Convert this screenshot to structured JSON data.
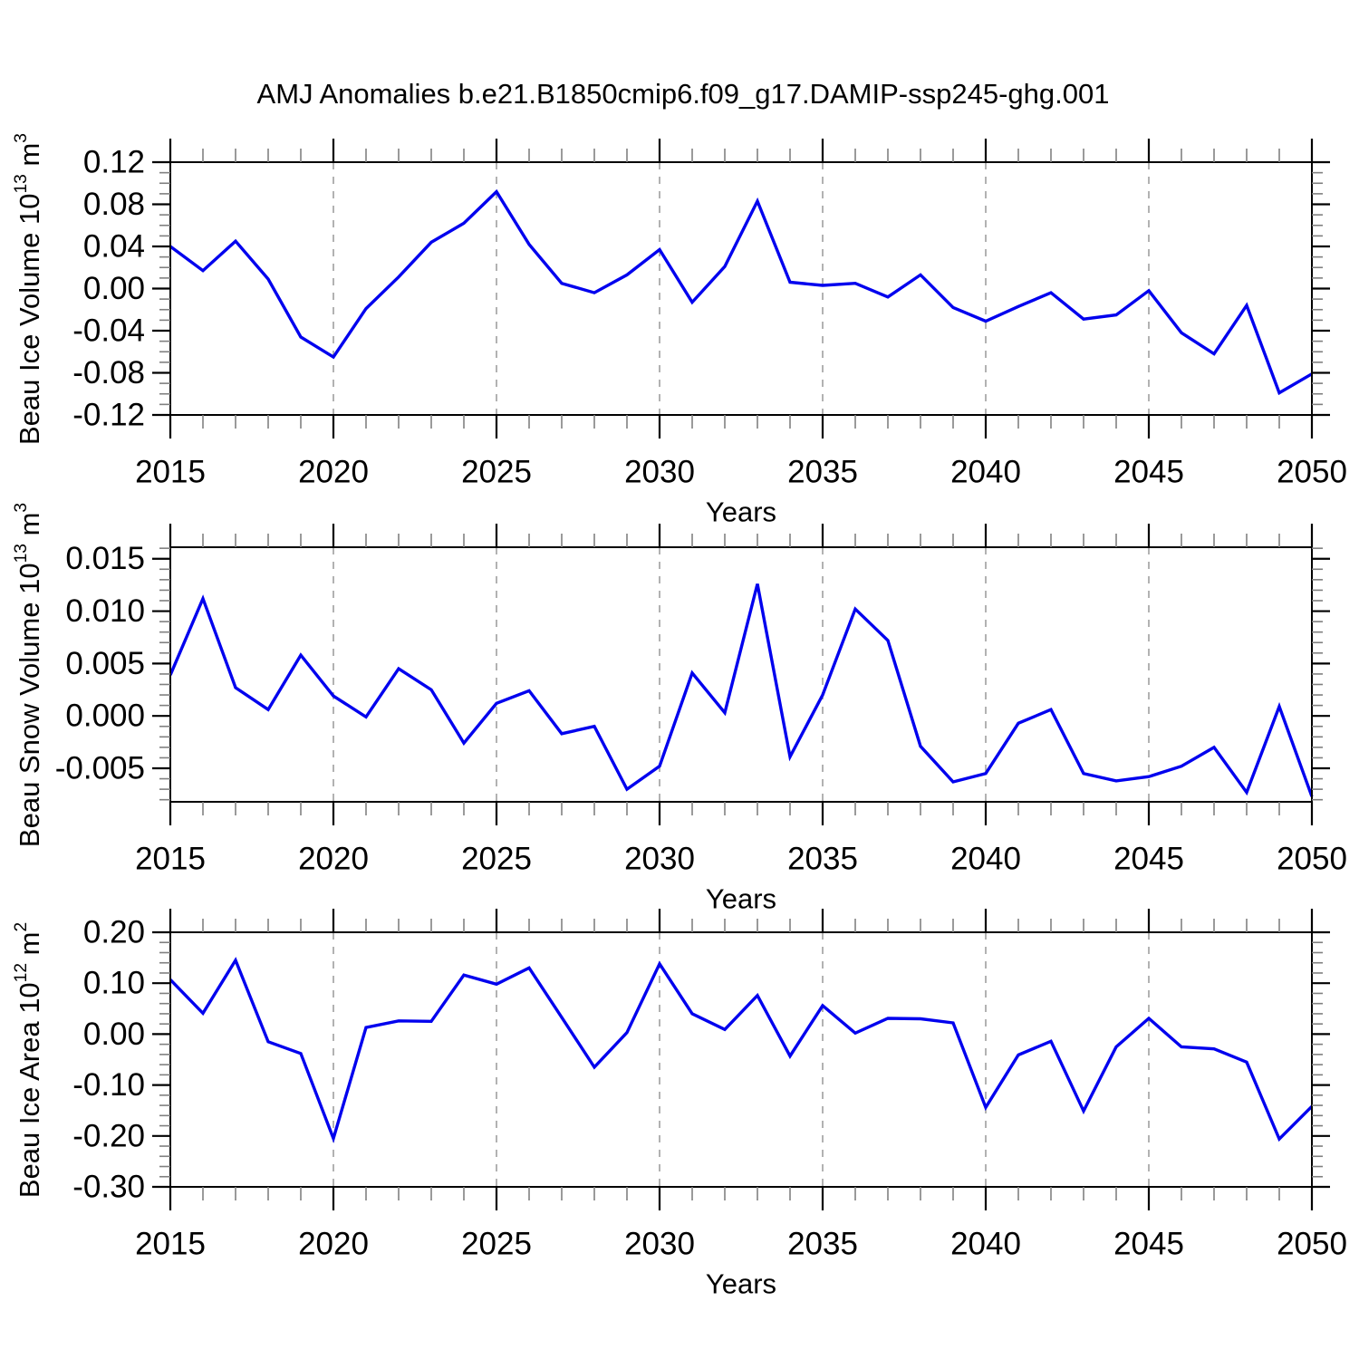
{
  "title": "AMJ Anomalies b.e21.B1850cmip6.f09_g17.DAMIP-ssp245-ghg.001",
  "colors": {
    "line": "#0000ee",
    "frame": "#000000",
    "grid": "#999999",
    "minor_tick": "#808080",
    "text": "#000000",
    "background": "#ffffff"
  },
  "x_axis": {
    "label": "Years",
    "min": 2015,
    "max": 2050,
    "major_step": 5,
    "minor_step": 1,
    "major_tick_labels": [
      "2015",
      "2020",
      "2025",
      "2030",
      "2035",
      "2040",
      "2045",
      "2050"
    ],
    "years": [
      2015,
      2016,
      2017,
      2018,
      2019,
      2020,
      2021,
      2022,
      2023,
      2024,
      2025,
      2026,
      2027,
      2028,
      2029,
      2030,
      2031,
      2032,
      2033,
      2034,
      2035,
      2036,
      2037,
      2038,
      2039,
      2040,
      2041,
      2042,
      2043,
      2044,
      2045,
      2046,
      2047,
      2048,
      2049,
      2050
    ]
  },
  "chart_data": [
    {
      "type": "line",
      "name": "ice-volume",
      "ylabel_text": "Beau Ice Volume",
      "ylabel_base": "10",
      "ylabel_power": "13",
      "ylabel_unit": "m",
      "ylabel_unit_power": "3",
      "ylim": [
        -0.12,
        0.12
      ],
      "yticks": [
        0.12,
        0.08,
        0.04,
        0.0,
        -0.04,
        -0.08,
        -0.12
      ],
      "ytick_labels": [
        "0.12",
        "0.08",
        "0.04",
        "0.00",
        "-0.04",
        "-0.08",
        "-0.12"
      ],
      "y_minor_step": 0.01,
      "grid": true,
      "values": [
        0.04,
        0.017,
        0.045,
        0.009,
        -0.046,
        -0.065,
        -0.019,
        0.011,
        0.044,
        0.062,
        0.092,
        0.042,
        0.005,
        -0.004,
        0.013,
        0.037,
        -0.013,
        0.021,
        0.083,
        0.006,
        0.003,
        0.005,
        -0.008,
        0.013,
        -0.018,
        -0.031,
        -0.017,
        -0.004,
        -0.029,
        -0.025,
        -0.002,
        -0.042,
        -0.062,
        -0.016,
        -0.099,
        -0.081
      ]
    },
    {
      "type": "line",
      "name": "snow-volume",
      "ylabel_text": "Beau Snow Volume",
      "ylabel_base": "10",
      "ylabel_power": "13",
      "ylabel_unit": "m",
      "ylabel_unit_power": "3",
      "ylim": [
        -0.0082,
        0.0161
      ],
      "yticks": [
        0.015,
        0.01,
        0.005,
        0.0,
        -0.005
      ],
      "ytick_labels": [
        "0.015",
        "0.010",
        "0.005",
        "0.000",
        "-0.005"
      ],
      "y_minor_step": 0.001,
      "grid": true,
      "values": [
        0.0039,
        0.0112,
        0.0027,
        0.0006,
        0.0058,
        0.0019,
        -0.0001,
        0.0045,
        0.0025,
        -0.0026,
        0.0012,
        0.0024,
        -0.0017,
        -0.001,
        -0.007,
        -0.0048,
        0.0041,
        0.0003,
        0.0126,
        -0.0039,
        0.002,
        0.0102,
        0.0072,
        -0.0029,
        -0.0063,
        -0.0055,
        -0.0007,
        0.0006,
        -0.0055,
        -0.0062,
        -0.0058,
        -0.0048,
        -0.003,
        -0.0073,
        0.0009,
        -0.0077
      ]
    },
    {
      "type": "line",
      "name": "ice-area",
      "ylabel_text": "Beau Ice Area",
      "ylabel_base": "10",
      "ylabel_power": "12",
      "ylabel_unit": "m",
      "ylabel_unit_power": "2",
      "ylim": [
        -0.3,
        0.2
      ],
      "yticks": [
        0.2,
        0.1,
        0.0,
        -0.1,
        -0.2,
        -0.3
      ],
      "ytick_labels": [
        "0.20",
        "0.10",
        "0.00",
        "-0.10",
        "-0.20",
        "-0.30"
      ],
      "y_minor_step": 0.02,
      "grid": true,
      "values": [
        0.107,
        0.041,
        0.145,
        -0.015,
        -0.038,
        -0.205,
        0.013,
        0.026,
        0.025,
        0.116,
        0.098,
        0.13,
        0.033,
        -0.065,
        0.003,
        0.138,
        0.04,
        0.009,
        0.076,
        -0.043,
        0.056,
        0.002,
        0.031,
        0.03,
        0.022,
        -0.144,
        -0.041,
        -0.014,
        -0.151,
        -0.025,
        0.031,
        -0.025,
        -0.029,
        -0.055,
        -0.206,
        -0.142
      ]
    }
  ]
}
